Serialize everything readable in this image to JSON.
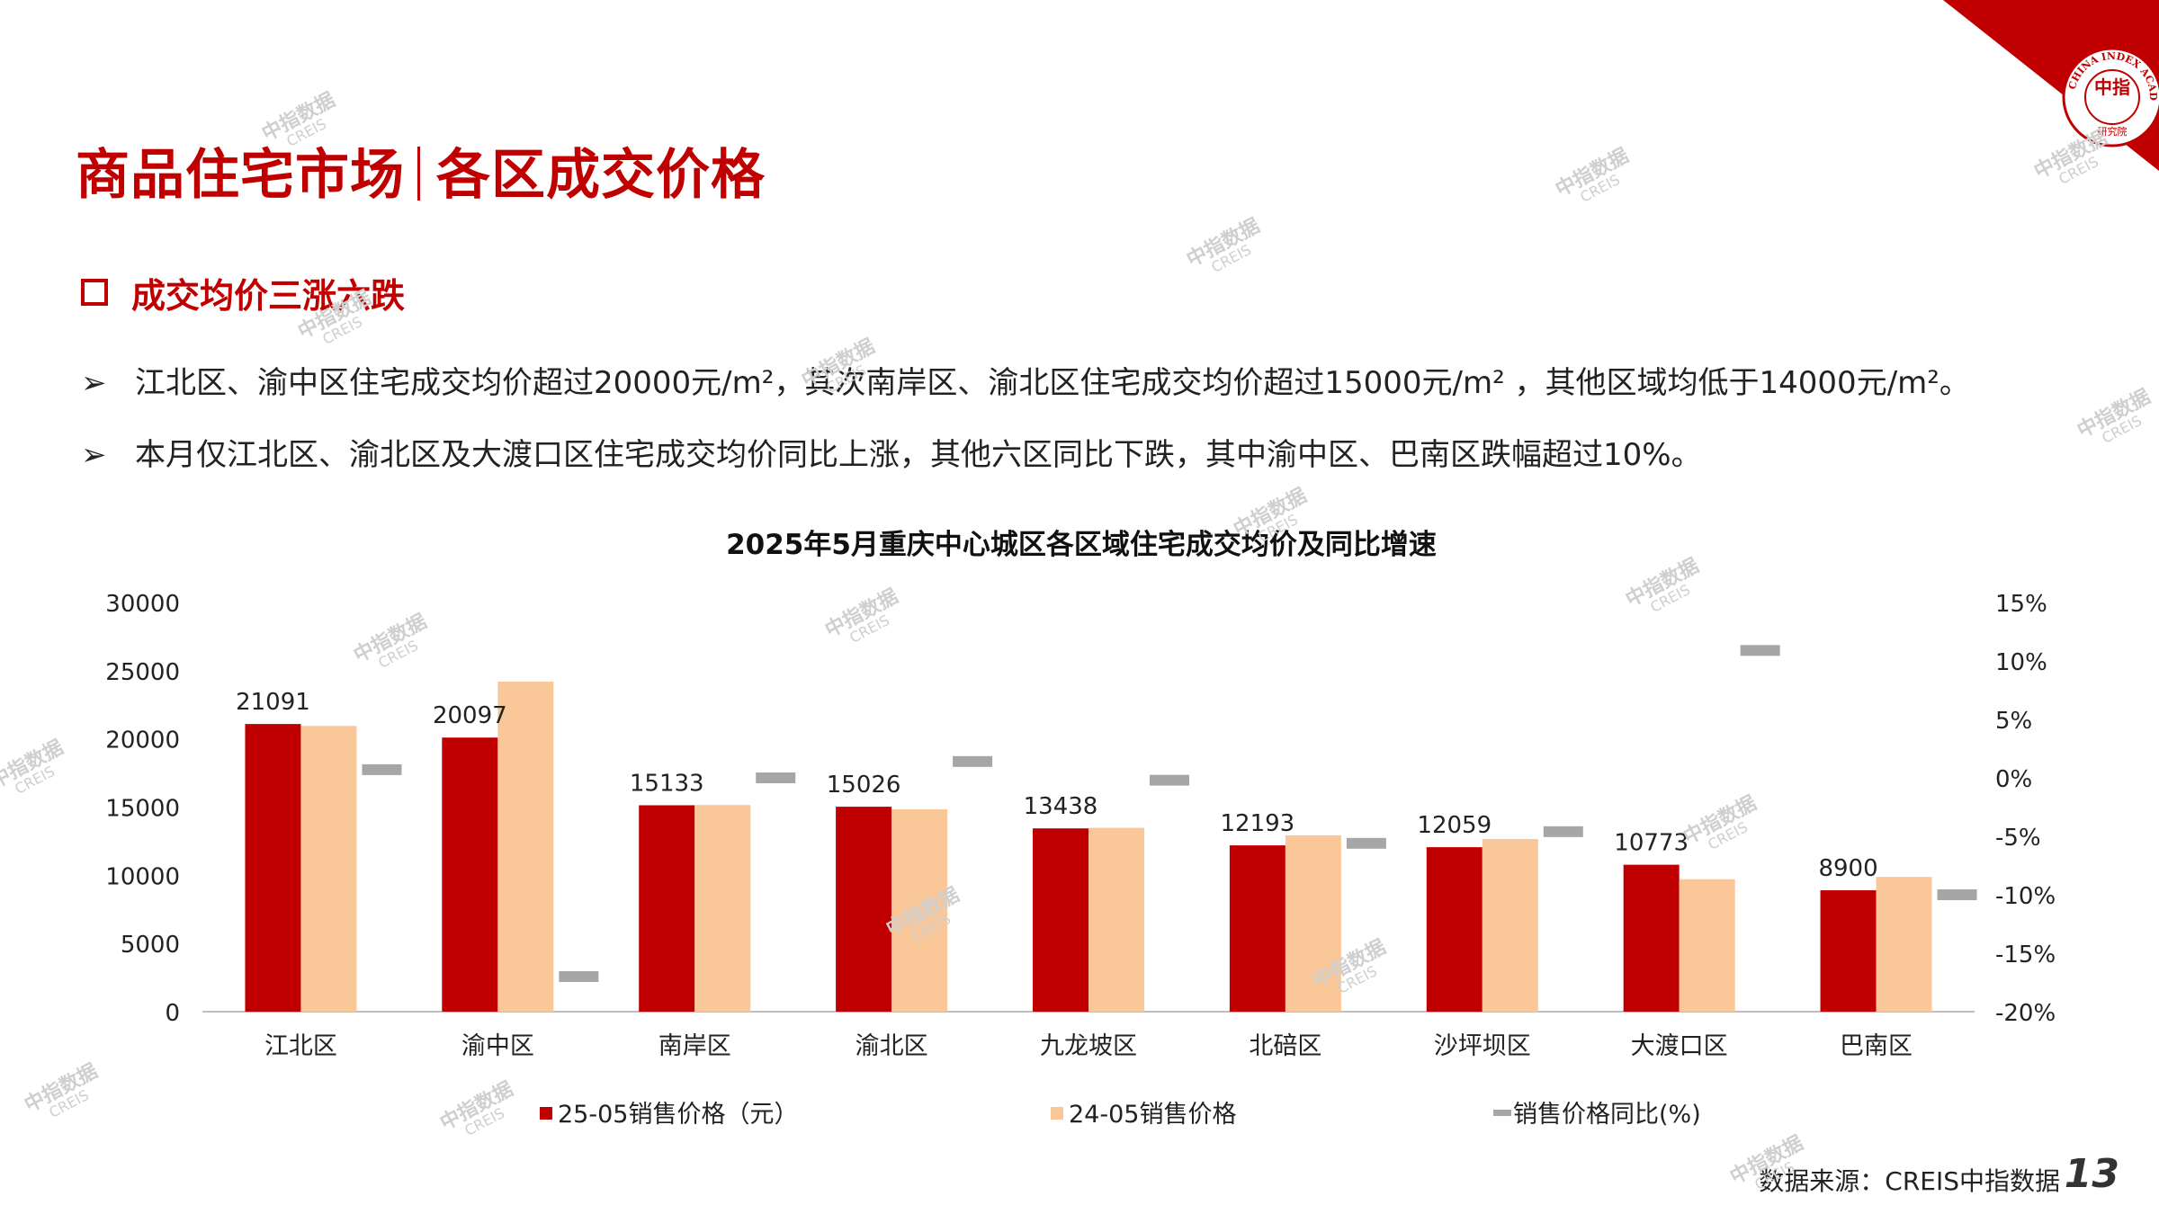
{
  "title": {
    "part1": "商品住宅市场",
    "part2": "各区成交价格"
  },
  "section": "成交均价三涨六跌",
  "bullets": [
    {
      "marker": "➢",
      "text": "江北区、渝中区住宅成交均价超过20000元/m²，其次南岸区、渝北区住宅成交均价超过15000元/m² ，其他区域均低于14000元/m²。"
    },
    {
      "marker": "➢",
      "text": "本月仅江北区、渝北区及大渡口区住宅成交均价同比上涨，其他六区同比下跌，其中渝中区、巴南区跌幅超过10%。"
    }
  ],
  "logo": {
    "text": "CHINA INDEX ACADEMY",
    "center": "中指",
    "bottom": "研究院"
  },
  "watermark": {
    "cn": "中指数据",
    "en": "CREIS"
  },
  "footer": {
    "source": "数据来源：CREIS中指数据",
    "page": "13"
  },
  "colors": {
    "accent": "#c00000",
    "bar_2025": "#c00000",
    "bar_2024": "#fac898",
    "yoy_marker": "#a6a6a6"
  },
  "chart_data": {
    "type": "bar",
    "title": "2025年5月重庆中心城区各区域住宅成交均价及同比增速",
    "categories": [
      "江北区",
      "渝中区",
      "南岸区",
      "渝北区",
      "九龙坡区",
      "北碚区",
      "沙坪坝区",
      "大渡口区",
      "巴南区"
    ],
    "series": [
      {
        "name": "25-05销售价格（元）",
        "axis": "left",
        "values": [
          21091,
          20097,
          15133,
          15026,
          13438,
          12193,
          12059,
          10773,
          8900
        ],
        "data_labels": true
      },
      {
        "name": "24-05销售价格",
        "axis": "left",
        "values": [
          20950,
          24200,
          15150,
          14830,
          13480,
          12930,
          12660,
          9710,
          9880
        ]
      },
      {
        "name": "销售价格同比(%)",
        "axis": "right",
        "marker": "dash",
        "values": [
          0.7,
          -17.0,
          0.0,
          1.4,
          -0.2,
          -5.6,
          -4.6,
          10.9,
          -10.0
        ]
      }
    ],
    "y_left": {
      "min": 0,
      "max": 30000,
      "ticks": [
        "0",
        "5000",
        "10000",
        "15000",
        "20000",
        "25000",
        "30000"
      ]
    },
    "y_right": {
      "min": -20,
      "max": 15,
      "ticks": [
        "-20%",
        "-15%",
        "-10%",
        "-5%",
        "0%",
        "5%",
        "10%",
        "15%"
      ]
    },
    "grid": false,
    "legend_position": "bottom"
  }
}
